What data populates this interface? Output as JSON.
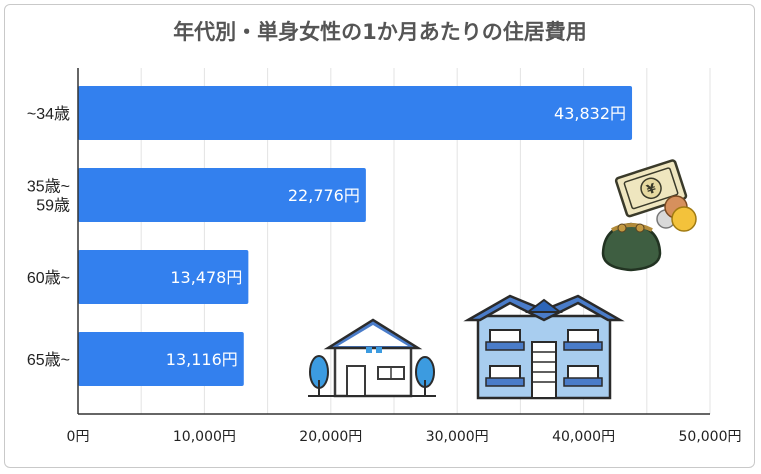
{
  "chart_data": {
    "type": "bar",
    "orientation": "horizontal",
    "title": "年代別・単身女性の1か月あたりの住居費用",
    "categories": [
      [
        "~34歳"
      ],
      [
        "35歳~",
        "59歳"
      ],
      [
        "60歳~"
      ],
      [
        "65歳~"
      ]
    ],
    "values": [
      43832,
      22776,
      13478,
      13116
    ],
    "value_labels": [
      "43,832円",
      "22,776円",
      "13,478円",
      "13,116円"
    ],
    "xticks": [
      0,
      10000,
      20000,
      30000,
      40000,
      50000
    ],
    "xtick_labels": [
      "0円",
      "10,000円",
      "20,000円",
      "30,000円",
      "40,000円",
      "50,000円"
    ],
    "xlim": [
      0,
      50000
    ],
    "grid": true,
    "colors": {
      "bar": "#3380ee",
      "grid": "#e3e3e3",
      "axis": "#333333"
    }
  },
  "illustrations": {
    "money": "money-icon",
    "house": "house-icon",
    "apartment": "apartment-icon"
  }
}
